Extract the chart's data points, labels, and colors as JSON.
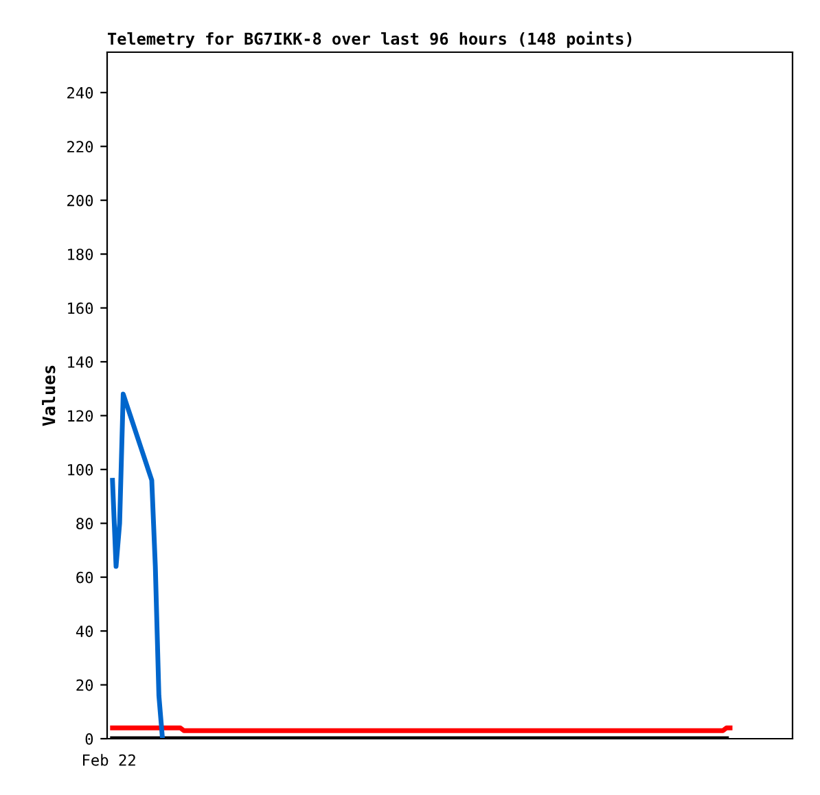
{
  "chart_data": {
    "type": "line",
    "title": "Telemetry for BG7IKK-8 over last 96 hours (148 points)",
    "ylabel": "Values",
    "categories": [
      "Feb 22",
      null,
      null,
      null,
      null,
      null,
      null,
      null,
      null,
      null,
      null,
      null,
      null,
      null,
      null,
      null,
      null,
      null,
      null,
      null,
      null,
      null,
      null,
      null,
      null,
      null,
      null,
      null,
      null,
      null,
      null,
      null,
      null,
      null,
      null,
      null,
      null,
      null,
      null,
      null,
      null,
      null,
      null,
      null,
      null,
      null,
      null,
      null,
      null,
      null,
      null,
      null,
      null,
      null,
      null,
      null,
      null,
      null,
      null,
      null,
      null,
      null,
      null,
      null,
      null,
      null,
      null,
      null,
      null,
      null,
      null,
      null,
      null,
      null,
      null,
      null,
      null,
      null,
      null,
      null,
      null,
      null,
      null,
      null,
      null,
      null,
      null,
      null,
      null,
      null,
      null,
      null,
      null,
      null,
      null,
      null,
      null,
      null,
      null,
      null,
      null,
      null,
      null,
      null,
      null,
      null,
      null,
      null,
      null,
      null,
      null,
      null,
      null,
      null,
      null,
      null,
      null,
      null,
      null,
      null,
      null,
      null,
      null,
      null,
      null,
      null,
      null,
      null,
      null,
      null,
      null,
      null,
      null,
      null,
      null,
      null,
      null,
      null,
      null,
      null,
      null,
      null,
      null,
      null,
      null,
      null,
      null,
      null,
      null,
      null,
      null,
      null,
      null,
      null,
      null,
      null,
      null,
      null,
      null,
      null,
      null,
      null,
      null,
      null,
      null,
      null,
      null,
      null,
      null,
      null,
      null,
      null,
      null,
      null,
      null,
      null,
      null,
      null,
      null,
      null,
      null,
      null,
      null,
      null,
      null,
      null,
      null,
      null,
      null,
      null,
      null,
      null
    ],
    "ylim": [
      0,
      255
    ],
    "yticks": [
      0,
      20,
      40,
      60,
      80,
      100,
      120,
      140,
      160,
      180,
      200,
      220,
      240
    ],
    "grid": false,
    "legend": false,
    "marker": "none",
    "line_style": "solid",
    "series": [
      {
        "color": "#ff0000",
        "values": [
          null,
          4,
          4,
          4,
          4,
          4,
          4,
          4,
          4,
          4,
          4,
          4,
          4,
          4,
          4,
          4,
          4,
          4,
          4,
          4,
          4,
          3,
          3,
          3,
          3,
          3,
          3,
          3,
          3,
          3,
          3,
          3,
          3,
          3,
          3,
          3,
          3,
          3,
          3,
          3,
          3,
          3,
          3,
          3,
          3,
          3,
          3,
          3,
          3,
          3,
          3,
          3,
          3,
          3,
          3,
          3,
          3,
          3,
          3,
          3,
          3,
          3,
          3,
          3,
          3,
          3,
          3,
          3,
          3,
          3,
          3,
          3,
          3,
          3,
          3,
          3,
          3,
          3,
          3,
          3,
          3,
          3,
          3,
          3,
          3,
          3,
          3,
          3,
          3,
          3,
          3,
          3,
          3,
          3,
          3,
          3,
          3,
          3,
          3,
          3,
          3,
          3,
          3,
          3,
          3,
          3,
          3,
          3,
          3,
          3,
          3,
          3,
          3,
          3,
          3,
          3,
          3,
          3,
          3,
          3,
          3,
          3,
          3,
          3,
          3,
          3,
          3,
          3,
          3,
          3,
          3,
          3,
          3,
          3,
          3,
          3,
          3,
          3,
          3,
          3,
          3,
          3,
          3,
          3,
          3,
          3,
          3,
          3,
          3,
          3,
          3,
          3,
          3,
          3,
          3,
          3,
          3,
          3,
          3,
          3,
          3,
          3,
          3,
          3,
          3,
          3,
          3,
          3,
          3,
          3,
          3,
          3,
          3,
          4,
          4,
          null,
          null,
          null,
          null,
          null,
          null,
          null,
          null,
          null,
          null,
          null,
          null,
          null,
          null,
          null,
          null,
          null
        ]
      },
      {
        "color": "#000000",
        "values": [
          null,
          0,
          0,
          0,
          0,
          0,
          0,
          0,
          0,
          0,
          0,
          0,
          0,
          0,
          0,
          0,
          0,
          0,
          0,
          0,
          0,
          0,
          0,
          0,
          0,
          0,
          0,
          0,
          0,
          0,
          0,
          0,
          0,
          0,
          0,
          0,
          0,
          0,
          0,
          0,
          0,
          0,
          0,
          0,
          0,
          0,
          0,
          0,
          0,
          0,
          0,
          0,
          0,
          0,
          0,
          0,
          0,
          0,
          0,
          0,
          0,
          0,
          0,
          0,
          0,
          0,
          0,
          0,
          0,
          0,
          0,
          0,
          0,
          0,
          0,
          0,
          0,
          0,
          0,
          0,
          0,
          0,
          0,
          0,
          0,
          0,
          0,
          0,
          0,
          0,
          0,
          0,
          0,
          0,
          0,
          0,
          0,
          0,
          0,
          0,
          0,
          0,
          0,
          0,
          0,
          0,
          0,
          0,
          0,
          0,
          0,
          0,
          0,
          0,
          0,
          0,
          0,
          0,
          0,
          0,
          0,
          0,
          0,
          0,
          0,
          0,
          0,
          0,
          0,
          0,
          0,
          0,
          0,
          0,
          0,
          0,
          0,
          0,
          0,
          0,
          0,
          0,
          0,
          0,
          0,
          0,
          0,
          0,
          0,
          0,
          0,
          0,
          0,
          0,
          0,
          0,
          0,
          0,
          0,
          0,
          0,
          0,
          0,
          0,
          0,
          0,
          0,
          0,
          0,
          0,
          0,
          0,
          0,
          0,
          null,
          null,
          null,
          null,
          null,
          null,
          null,
          null,
          null,
          null,
          null,
          null,
          null,
          null,
          null,
          null,
          null,
          null
        ]
      },
      {
        "color": "#0066cc",
        "values": [
          null,
          96,
          64,
          80,
          128,
          124,
          120,
          116,
          112,
          108,
          104,
          100,
          96,
          64,
          16,
          0,
          null,
          null,
          null,
          null,
          null,
          null,
          null,
          null,
          null,
          null,
          null,
          null,
          null,
          null,
          null,
          null,
          null,
          null,
          null,
          null,
          null,
          null,
          null,
          null,
          null,
          null,
          null,
          null,
          null,
          null,
          null,
          null,
          null,
          null,
          null,
          null,
          null,
          null,
          null,
          null,
          null,
          null,
          null,
          null,
          null,
          null,
          null,
          null,
          null,
          null,
          null,
          null,
          null,
          null,
          null,
          null,
          null,
          null,
          null,
          null,
          null,
          null,
          null,
          null,
          null,
          null,
          null,
          null,
          null,
          null,
          null,
          null,
          null,
          null,
          null,
          null,
          null,
          null,
          null,
          null,
          null,
          null,
          null,
          null,
          null,
          null,
          null,
          null,
          null,
          null,
          null,
          null,
          null,
          null,
          null,
          null,
          null,
          null,
          null,
          null,
          null,
          null,
          null,
          null,
          null,
          null,
          null,
          null,
          null,
          null,
          null,
          null,
          null,
          null,
          null,
          null,
          null,
          null,
          null,
          null,
          null,
          null,
          null,
          null,
          null,
          null,
          null,
          null,
          null,
          null,
          null,
          null,
          null,
          null,
          null,
          null,
          null,
          null,
          null,
          null,
          null,
          null,
          null,
          null,
          null,
          null,
          null,
          null,
          null,
          null,
          null,
          null,
          null,
          null,
          null,
          null,
          null,
          null,
          null,
          null,
          null,
          null,
          null,
          null,
          null,
          null,
          null,
          null,
          null,
          null,
          null,
          null,
          null,
          null,
          null,
          null
        ]
      }
    ]
  }
}
